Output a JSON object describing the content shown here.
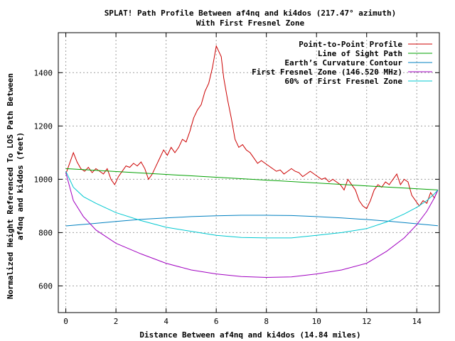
{
  "chart_data": {
    "type": "line",
    "title": "SPLAT! Path Profile Between af4nq and ki4dos (217.47° azimuth)",
    "subtitle": "With First Fresnel Zone",
    "xlabel": "Distance Between af4nq and ki4dos (14.84 miles)",
    "ylabel_lines": [
      "Normalized Height Referenced To LOS Path Between",
      "af4nq and ki4dos (feet)"
    ],
    "xlim": [
      -0.3,
      14.9
    ],
    "ylim": [
      500,
      1550
    ],
    "x_ticks": [
      0,
      2,
      4,
      6,
      8,
      10,
      12,
      14
    ],
    "y_ticks": [
      600,
      800,
      1000,
      1200,
      1400
    ],
    "grid": true,
    "legend_position": "top-right",
    "series": [
      {
        "name": "Point-to-Point Profile",
        "color": "#cc0000",
        "points": [
          [
            0.0,
            1020
          ],
          [
            0.15,
            1060
          ],
          [
            0.3,
            1100
          ],
          [
            0.45,
            1065
          ],
          [
            0.6,
            1040
          ],
          [
            0.75,
            1030
          ],
          [
            0.9,
            1045
          ],
          [
            1.05,
            1025
          ],
          [
            1.2,
            1040
          ],
          [
            1.35,
            1030
          ],
          [
            1.5,
            1020
          ],
          [
            1.65,
            1040
          ],
          [
            1.8,
            1000
          ],
          [
            1.95,
            980
          ],
          [
            2.1,
            1010
          ],
          [
            2.25,
            1030
          ],
          [
            2.4,
            1050
          ],
          [
            2.55,
            1045
          ],
          [
            2.7,
            1060
          ],
          [
            2.85,
            1050
          ],
          [
            3.0,
            1065
          ],
          [
            3.15,
            1040
          ],
          [
            3.3,
            1000
          ],
          [
            3.45,
            1020
          ],
          [
            3.6,
            1050
          ],
          [
            3.75,
            1080
          ],
          [
            3.9,
            1110
          ],
          [
            4.05,
            1090
          ],
          [
            4.2,
            1120
          ],
          [
            4.35,
            1100
          ],
          [
            4.5,
            1120
          ],
          [
            4.65,
            1150
          ],
          [
            4.8,
            1140
          ],
          [
            4.95,
            1180
          ],
          [
            5.1,
            1230
          ],
          [
            5.25,
            1260
          ],
          [
            5.4,
            1280
          ],
          [
            5.55,
            1330
          ],
          [
            5.7,
            1360
          ],
          [
            5.85,
            1420
          ],
          [
            6.0,
            1500
          ],
          [
            6.1,
            1480
          ],
          [
            6.2,
            1460
          ],
          [
            6.3,
            1380
          ],
          [
            6.45,
            1300
          ],
          [
            6.6,
            1230
          ],
          [
            6.75,
            1150
          ],
          [
            6.9,
            1120
          ],
          [
            7.05,
            1130
          ],
          [
            7.2,
            1110
          ],
          [
            7.35,
            1100
          ],
          [
            7.5,
            1080
          ],
          [
            7.65,
            1060
          ],
          [
            7.8,
            1070
          ],
          [
            7.95,
            1060
          ],
          [
            8.1,
            1050
          ],
          [
            8.25,
            1040
          ],
          [
            8.4,
            1030
          ],
          [
            8.55,
            1035
          ],
          [
            8.7,
            1020
          ],
          [
            8.85,
            1030
          ],
          [
            9.0,
            1040
          ],
          [
            9.15,
            1030
          ],
          [
            9.3,
            1025
          ],
          [
            9.45,
            1010
          ],
          [
            9.6,
            1020
          ],
          [
            9.75,
            1030
          ],
          [
            9.9,
            1020
          ],
          [
            10.05,
            1010
          ],
          [
            10.2,
            1000
          ],
          [
            10.35,
            1005
          ],
          [
            10.5,
            990
          ],
          [
            10.65,
            1000
          ],
          [
            10.8,
            990
          ],
          [
            10.95,
            980
          ],
          [
            11.1,
            960
          ],
          [
            11.25,
            1000
          ],
          [
            11.4,
            980
          ],
          [
            11.55,
            960
          ],
          [
            11.7,
            920
          ],
          [
            11.85,
            900
          ],
          [
            12.0,
            890
          ],
          [
            12.15,
            920
          ],
          [
            12.3,
            960
          ],
          [
            12.45,
            980
          ],
          [
            12.6,
            970
          ],
          [
            12.75,
            990
          ],
          [
            12.9,
            980
          ],
          [
            13.05,
            1000
          ],
          [
            13.2,
            1020
          ],
          [
            13.35,
            980
          ],
          [
            13.5,
            1000
          ],
          [
            13.65,
            990
          ],
          [
            13.8,
            940
          ],
          [
            13.95,
            920
          ],
          [
            14.1,
            900
          ],
          [
            14.25,
            920
          ],
          [
            14.4,
            910
          ],
          [
            14.55,
            950
          ],
          [
            14.7,
            930
          ],
          [
            14.84,
            960
          ]
        ]
      },
      {
        "name": "Line of Sight Path",
        "color": "#00a000",
        "points": [
          [
            0.0,
            1040
          ],
          [
            14.84,
            960
          ]
        ]
      },
      {
        "name": "Earth’s Curvature Contour",
        "color": "#0080c0",
        "points": [
          [
            0.0,
            825
          ],
          [
            1.0,
            833
          ],
          [
            2.0,
            842
          ],
          [
            3.0,
            850
          ],
          [
            4.0,
            855
          ],
          [
            5.0,
            860
          ],
          [
            6.0,
            863
          ],
          [
            7.0,
            865
          ],
          [
            7.42,
            865
          ],
          [
            8.0,
            865
          ],
          [
            9.0,
            864
          ],
          [
            10.0,
            860
          ],
          [
            11.0,
            855
          ],
          [
            12.0,
            849
          ],
          [
            13.0,
            842
          ],
          [
            14.0,
            833
          ],
          [
            14.84,
            826
          ]
        ]
      },
      {
        "name": "First Fresnel Zone (146.520 MHz)",
        "color": "#a000c0",
        "points": [
          [
            0.0,
            1025
          ],
          [
            0.3,
            920
          ],
          [
            0.7,
            860
          ],
          [
            1.2,
            810
          ],
          [
            2.0,
            760
          ],
          [
            3.0,
            720
          ],
          [
            4.0,
            685
          ],
          [
            5.0,
            660
          ],
          [
            6.0,
            645
          ],
          [
            7.0,
            635
          ],
          [
            8.0,
            632
          ],
          [
            9.0,
            634
          ],
          [
            10.0,
            645
          ],
          [
            11.0,
            660
          ],
          [
            12.0,
            685
          ],
          [
            12.8,
            730
          ],
          [
            13.5,
            780
          ],
          [
            14.0,
            830
          ],
          [
            14.4,
            880
          ],
          [
            14.7,
            930
          ],
          [
            14.84,
            960
          ]
        ]
      },
      {
        "name": "60% of First Fresnel Zone",
        "color": "#00c8d0",
        "points": [
          [
            0.0,
            1030
          ],
          [
            0.3,
            970
          ],
          [
            0.7,
            935
          ],
          [
            1.2,
            910
          ],
          [
            2.0,
            875
          ],
          [
            3.0,
            845
          ],
          [
            4.0,
            820
          ],
          [
            5.0,
            805
          ],
          [
            6.0,
            790
          ],
          [
            7.0,
            782
          ],
          [
            8.0,
            780
          ],
          [
            9.0,
            780
          ],
          [
            10.0,
            790
          ],
          [
            11.0,
            800
          ],
          [
            12.0,
            815
          ],
          [
            12.8,
            840
          ],
          [
            13.5,
            870
          ],
          [
            14.0,
            895
          ],
          [
            14.4,
            920
          ],
          [
            14.7,
            945
          ],
          [
            14.84,
            960
          ]
        ]
      }
    ]
  }
}
